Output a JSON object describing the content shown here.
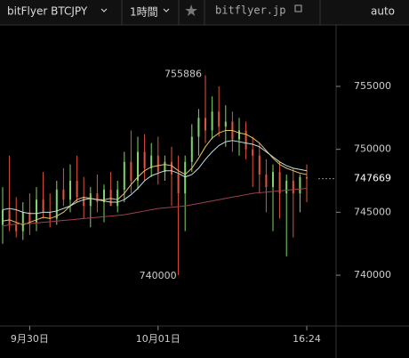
{
  "toolbar": {
    "symbol": "bitFlyer BTCJPY",
    "interval": "1時間",
    "site": "bitflyer.jp",
    "mode": "auto"
  },
  "chart_data": {
    "type": "candlestick",
    "categories": [
      null,
      null,
      null,
      null,
      "9月30日",
      null,
      null,
      null,
      null,
      null,
      null,
      null,
      null,
      null,
      null,
      null,
      null,
      null,
      null,
      null,
      null,
      null,
      null,
      "10月01日",
      null,
      null,
      null,
      null,
      null,
      null,
      null,
      null,
      null,
      null,
      null,
      null,
      null,
      null,
      null,
      null,
      null,
      null,
      null,
      null,
      null,
      "16:24"
    ],
    "open": [
      744000,
      745200,
      744000,
      743500,
      745000,
      744200,
      746000,
      745000,
      744500,
      746800,
      746000,
      747500,
      746200,
      745500,
      746500,
      745800,
      746800,
      745500,
      746800,
      749000,
      747500,
      749800,
      748500,
      749500,
      748200,
      749000,
      748000,
      746500,
      749000,
      751000,
      752500,
      751500,
      753000,
      751800,
      752200,
      750800,
      751500,
      750000,
      749500,
      748000,
      747000,
      748200,
      746500,
      747500,
      746500,
      747800
    ],
    "high": [
      747000,
      749500,
      746200,
      745800,
      746500,
      747000,
      748200,
      746500,
      747500,
      748500,
      748800,
      749500,
      747800,
      747000,
      748000,
      747200,
      748200,
      747500,
      749800,
      751500,
      751000,
      751200,
      750500,
      751000,
      749500,
      750200,
      749500,
      749500,
      752000,
      753200,
      755886,
      754200,
      755000,
      753500,
      753000,
      752500,
      752200,
      751000,
      750500,
      749200,
      748800,
      749000,
      748000,
      748500,
      748000,
      748800
    ],
    "low": [
      742500,
      743500,
      743000,
      742800,
      743200,
      743500,
      744500,
      743800,
      744000,
      745500,
      745000,
      745800,
      744500,
      743800,
      745000,
      744200,
      745500,
      745000,
      745800,
      746500,
      746800,
      747500,
      747800,
      747200,
      747500,
      745500,
      740000,
      743500,
      748200,
      749500,
      750500,
      750800,
      751000,
      750200,
      749800,
      749500,
      749200,
      747000,
      746500,
      745000,
      743500,
      744500,
      741500,
      743000,
      745000,
      745800
    ],
    "close": [
      745200,
      744000,
      743500,
      745000,
      744200,
      746000,
      745000,
      744500,
      746800,
      746000,
      747500,
      746200,
      745500,
      746500,
      745800,
      746800,
      745500,
      746800,
      749000,
      747500,
      749800,
      748500,
      749500,
      748200,
      749000,
      748000,
      746500,
      749000,
      751000,
      752500,
      751500,
      753000,
      751800,
      752200,
      750800,
      751500,
      750000,
      749500,
      748000,
      747000,
      748200,
      746500,
      747500,
      746500,
      747800,
      747669
    ],
    "up_color": "#7ed36a",
    "down_color": "#e0533c",
    "series": [
      {
        "color": "#e8c36a",
        "values": [
          744300,
          744400,
          744200,
          744000,
          744200,
          744400,
          744600,
          744500,
          744700,
          745000,
          745500,
          746000,
          746200,
          746100,
          746000,
          746000,
          746100,
          746000,
          746500,
          747200,
          747800,
          748300,
          748600,
          748700,
          748800,
          748700,
          748300,
          748000,
          748500,
          749300,
          750200,
          750900,
          751300,
          751500,
          751500,
          751300,
          751200,
          750900,
          750500,
          749900,
          749300,
          748800,
          748500,
          748300,
          748100,
          748000
        ]
      },
      {
        "color": "#bfe0e0",
        "values": [
          745200,
          745300,
          745200,
          745000,
          744900,
          744900,
          745000,
          745000,
          745100,
          745300,
          745500,
          745800,
          746000,
          746100,
          746000,
          745900,
          745800,
          745800,
          746000,
          746400,
          746900,
          747500,
          747900,
          748100,
          748300,
          748300,
          748100,
          747800,
          748000,
          748500,
          749200,
          749800,
          750300,
          750600,
          750700,
          750600,
          750500,
          750400,
          750200,
          749800,
          749400,
          749000,
          748700,
          748500,
          748400,
          748300
        ]
      },
      {
        "color": "#a04050",
        "values": [
          743900,
          744000,
          744050,
          744100,
          744100,
          744150,
          744200,
          744250,
          744300,
          744350,
          744400,
          744450,
          744500,
          744550,
          744600,
          744650,
          744700,
          744750,
          744800,
          744900,
          745000,
          745100,
          745200,
          745300,
          745350,
          745400,
          745450,
          745500,
          745600,
          745700,
          745800,
          745900,
          746000,
          746100,
          746200,
          746300,
          746400,
          746500,
          746550,
          746600,
          746650,
          746700,
          746750,
          746800,
          746850,
          746900
        ]
      }
    ],
    "ylim": [
      735970,
      759880
    ],
    "yticks": [
      740000,
      745000,
      750000,
      755000
    ],
    "grid": false
  }
}
